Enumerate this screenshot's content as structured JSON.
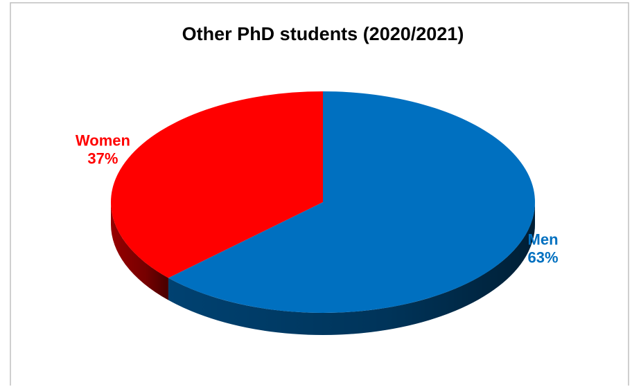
{
  "chart_data": {
    "type": "pie",
    "title": "Other PhD students (2020/2021)",
    "categories": [
      "Men",
      "Women"
    ],
    "values": [
      63,
      37
    ],
    "value_labels": [
      "63%",
      "37%"
    ],
    "colors": [
      "#0070c0",
      "#ff0000"
    ]
  }
}
